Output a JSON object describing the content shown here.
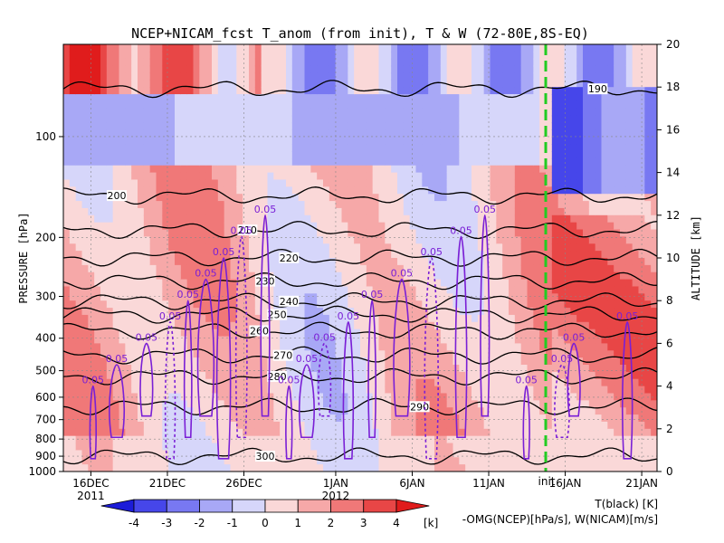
{
  "chart_data": {
    "type": "heatmap",
    "title": "NCEP+NICAM_fcst T_anom (from init), T & W  (72-80E,8S-EQ)",
    "ylabel": "PRESSURE [hPa]",
    "ylabel_right": "ALTITUDE [km]",
    "y_ticks": [
      "100",
      "200",
      "300",
      "400",
      "500",
      "600",
      "700",
      "800",
      "900",
      "1000"
    ],
    "y_ticks_right": [
      "0",
      "2",
      "4",
      "6",
      "8",
      "10",
      "12",
      "14",
      "16",
      "18",
      "20"
    ],
    "ylim_pressure": [
      1000,
      50
    ],
    "ylim_altitude": [
      0,
      20
    ],
    "x_ticks": [
      "16DEC",
      "21DEC",
      "26DEC",
      "1JAN",
      "6JAN",
      "11JAN",
      "16JAN",
      "21JAN"
    ],
    "x_year_labels": [
      "2011",
      "2012"
    ],
    "init_label": "init",
    "init_date": "14JAN",
    "colorbar": {
      "levels": [
        "-4",
        "-3",
        "-2",
        "-1",
        "0",
        "1",
        "2",
        "3",
        "4"
      ],
      "unit": "[k]",
      "colors": [
        "#1c1cd8",
        "#4646ea",
        "#7878f2",
        "#a8a8f6",
        "#d6d6fa",
        "#fad8d8",
        "#f6a8a8",
        "#f07878",
        "#e84646",
        "#e01c1c"
      ]
    },
    "legend": {
      "line1": "T(black) [K]",
      "line2": "-OMG(NCEP)[hPa/s], W(NICAM)[m/s]"
    },
    "temperature_contours": [
      {
        "value": "190",
        "label": "190"
      },
      {
        "value": "200",
        "label": "200"
      },
      {
        "value": "210",
        "label": "210"
      },
      {
        "value": "220",
        "label": "220"
      },
      {
        "value": "230",
        "label": "230"
      },
      {
        "value": "240",
        "label": "240"
      },
      {
        "value": "250",
        "label": "250"
      },
      {
        "value": "260",
        "label": "260"
      },
      {
        "value": "270",
        "label": "270"
      },
      {
        "value": "280",
        "label": "280"
      },
      {
        "value": "290",
        "label": "290"
      },
      {
        "value": "300",
        "label": "300"
      }
    ],
    "vertical_motion_label": "0.05",
    "grid": true
  }
}
